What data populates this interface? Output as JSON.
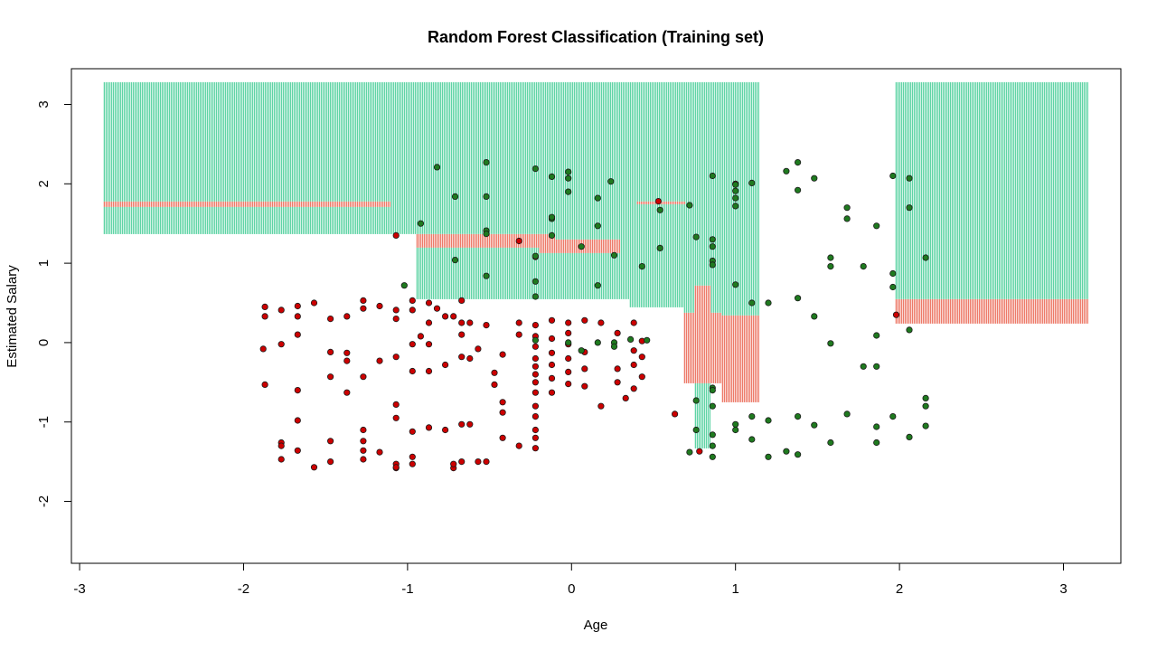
{
  "chart_data": {
    "type": "scatter",
    "title": "Random Forest Classification (Training set)",
    "xlabel": "Age",
    "ylabel": "Estimated Salary",
    "xlim": [
      -3.05,
      3.35
    ],
    "ylim": [
      -2.78,
      3.45
    ],
    "xticks": [
      "-3",
      "-2",
      "-1",
      "0",
      "1",
      "2",
      "3"
    ],
    "yticks": [
      "-2",
      "-1",
      "0",
      "1",
      "2",
      "3"
    ],
    "grid": false,
    "grid_range": {
      "x": [
        -2.85,
        3.15
      ],
      "y": [
        -2.6,
        3.28
      ]
    },
    "region_colors": {
      "class_0": "#fa8072",
      "class_1": "#3cb371",
      "stripe_green": "#32c88c",
      "stripe_red": "#e8553f"
    },
    "point_colors": {
      "class_0": "#cc0000",
      "class_1": "#1f7a1f"
    },
    "series": [
      {
        "class": "0",
        "points": [
          [
            -1.87,
            0.45
          ],
          [
            -1.87,
            0.33
          ],
          [
            -1.77,
            0.41
          ],
          [
            -1.67,
            0.46
          ],
          [
            -1.67,
            0.33
          ],
          [
            -1.57,
            0.5
          ],
          [
            -1.47,
            0.3
          ],
          [
            -1.37,
            0.33
          ],
          [
            -1.27,
            0.53
          ],
          [
            -1.27,
            0.43
          ],
          [
            -1.17,
            0.46
          ],
          [
            -1.07,
            0.41
          ],
          [
            -1.07,
            0.3
          ],
          [
            -0.97,
            0.53
          ],
          [
            -0.97,
            0.41
          ],
          [
            -0.87,
            0.5
          ],
          [
            -0.87,
            0.25
          ],
          [
            -0.77,
            0.33
          ],
          [
            -0.67,
            0.53
          ],
          [
            -0.67,
            0.25
          ],
          [
            -1.88,
            -0.08
          ],
          [
            -1.77,
            -0.02
          ],
          [
            -1.67,
            0.1
          ],
          [
            -1.47,
            -0.12
          ],
          [
            -1.87,
            -0.53
          ],
          [
            -1.37,
            -0.23
          ],
          [
            -1.37,
            -0.13
          ],
          [
            -1.27,
            -0.43
          ],
          [
            -1.47,
            -0.43
          ],
          [
            -1.37,
            -0.63
          ],
          [
            -1.17,
            -0.23
          ],
          [
            -1.07,
            -0.18
          ],
          [
            -0.97,
            -0.02
          ],
          [
            -0.97,
            -0.36
          ],
          [
            -0.87,
            -0.36
          ],
          [
            -0.87,
            -0.02
          ],
          [
            -0.77,
            -0.28
          ],
          [
            -0.67,
            -0.18
          ],
          [
            -0.67,
            0.1
          ],
          [
            -0.57,
            -0.08
          ],
          [
            -1.67,
            -0.6
          ],
          [
            -1.67,
            -0.98
          ],
          [
            -1.77,
            -1.26
          ],
          [
            -1.77,
            -1.3
          ],
          [
            -1.77,
            -1.47
          ],
          [
            -1.57,
            -1.57
          ],
          [
            -1.67,
            -1.36
          ],
          [
            -1.47,
            -1.24
          ],
          [
            -1.47,
            -1.5
          ],
          [
            -1.27,
            -1.1
          ],
          [
            -1.27,
            -1.24
          ],
          [
            -1.27,
            -1.36
          ],
          [
            -1.27,
            -1.47
          ],
          [
            -1.17,
            -1.38
          ],
          [
            -1.07,
            -1.53
          ],
          [
            -1.07,
            -1.58
          ],
          [
            -0.97,
            -1.44
          ],
          [
            -0.97,
            -1.53
          ],
          [
            -1.07,
            -0.78
          ],
          [
            -1.07,
            -0.95
          ],
          [
            -0.97,
            -1.12
          ],
          [
            -0.87,
            -1.07
          ],
          [
            -0.77,
            -1.1
          ],
          [
            -0.67,
            -1.03
          ],
          [
            -0.67,
            -1.5
          ],
          [
            -0.57,
            -1.5
          ],
          [
            -0.47,
            -0.53
          ],
          [
            -0.47,
            -0.38
          ],
          [
            -0.42,
            -0.75
          ],
          [
            -0.42,
            -1.2
          ],
          [
            -0.32,
            -1.3
          ],
          [
            -0.22,
            -1.33
          ],
          [
            -0.22,
            -1.2
          ],
          [
            -0.22,
            -1.1
          ],
          [
            -0.22,
            -0.93
          ],
          [
            -0.22,
            -0.8
          ],
          [
            -0.22,
            -0.63
          ],
          [
            -0.22,
            -0.5
          ],
          [
            -0.22,
            -0.4
          ],
          [
            -0.22,
            -0.3
          ],
          [
            -0.22,
            -0.2
          ],
          [
            -0.22,
            -0.05
          ],
          [
            -0.22,
            0.08
          ],
          [
            -0.22,
            0.22
          ],
          [
            -0.12,
            0.28
          ],
          [
            -0.12,
            0.05
          ],
          [
            -0.12,
            -0.13
          ],
          [
            -0.12,
            -0.28
          ],
          [
            -0.12,
            -0.45
          ],
          [
            -0.12,
            -0.63
          ],
          [
            -0.02,
            0.25
          ],
          [
            -0.02,
            0.12
          ],
          [
            -0.02,
            -0.02
          ],
          [
            -0.02,
            -0.2
          ],
          [
            -0.02,
            -0.37
          ],
          [
            -0.02,
            -0.52
          ],
          [
            0.08,
            0.28
          ],
          [
            0.08,
            -0.12
          ],
          [
            0.08,
            -0.33
          ],
          [
            0.08,
            -0.55
          ],
          [
            0.18,
            0.25
          ],
          [
            0.18,
            -0.8
          ],
          [
            0.28,
            -0.33
          ],
          [
            0.28,
            -0.5
          ],
          [
            0.28,
            0.12
          ],
          [
            0.33,
            -0.7
          ],
          [
            0.38,
            0.25
          ],
          [
            0.38,
            -0.1
          ],
          [
            0.38,
            -0.28
          ],
          [
            0.38,
            -0.58
          ],
          [
            0.43,
            0.02
          ],
          [
            0.43,
            -0.18
          ],
          [
            0.43,
            -0.43
          ],
          [
            -0.72,
            0.33
          ],
          [
            -0.62,
            -0.2
          ],
          [
            -0.52,
            0.22
          ],
          [
            -0.32,
            0.25
          ],
          [
            -0.32,
            0.1
          ],
          [
            -0.42,
            -0.15
          ],
          [
            -0.62,
            0.25
          ],
          [
            0.63,
            -0.9
          ],
          [
            0.78,
            -1.37
          ],
          [
            1.0,
            2.0
          ],
          [
            0.53,
            1.78
          ],
          [
            -1.07,
            1.35
          ],
          [
            -0.22,
            1.08
          ],
          [
            -0.32,
            1.28
          ],
          [
            1.98,
            0.35
          ],
          [
            -0.72,
            -1.58
          ],
          [
            -0.72,
            -1.53
          ],
          [
            -0.52,
            -1.5
          ],
          [
            -0.42,
            -0.88
          ],
          [
            -0.62,
            -1.03
          ],
          [
            -1.07,
            -1.57
          ],
          [
            -0.92,
            0.08
          ],
          [
            -0.82,
            0.43
          ]
        ]
      },
      {
        "class": "1",
        "points": [
          [
            -0.82,
            2.21
          ],
          [
            -0.52,
            2.27
          ],
          [
            -0.22,
            2.19
          ],
          [
            -0.12,
            2.09
          ],
          [
            -0.02,
            2.15
          ],
          [
            -0.02,
            2.07
          ],
          [
            -0.02,
            1.9
          ],
          [
            0.24,
            2.03
          ],
          [
            -0.71,
            1.84
          ],
          [
            -0.52,
            1.84
          ],
          [
            0.16,
            1.82
          ],
          [
            -0.12,
            1.56
          ],
          [
            -0.12,
            1.58
          ],
          [
            -0.92,
            1.5
          ],
          [
            -0.52,
            1.41
          ],
          [
            -0.52,
            1.37
          ],
          [
            -0.12,
            1.35
          ],
          [
            0.16,
            1.47
          ],
          [
            0.06,
            1.21
          ],
          [
            -0.22,
            1.09
          ],
          [
            -0.71,
            1.04
          ],
          [
            -1.02,
            0.72
          ],
          [
            -0.52,
            0.84
          ],
          [
            -0.22,
            0.77
          ],
          [
            -0.22,
            0.58
          ],
          [
            0.16,
            0.72
          ],
          [
            0.26,
            1.1
          ],
          [
            0.43,
            0.96
          ],
          [
            0.54,
            1.67
          ],
          [
            0.54,
            1.19
          ],
          [
            0.72,
            1.73
          ],
          [
            0.86,
            2.1
          ],
          [
            1.0,
            1.99
          ],
          [
            1.0,
            1.91
          ],
          [
            1.0,
            1.82
          ],
          [
            1.0,
            1.72
          ],
          [
            1.1,
            2.01
          ],
          [
            0.86,
            1.3
          ],
          [
            0.76,
            1.33
          ],
          [
            0.86,
            1.21
          ],
          [
            0.86,
            1.03
          ],
          [
            0.86,
            0.98
          ],
          [
            1.0,
            0.73
          ],
          [
            1.1,
            0.5
          ],
          [
            1.2,
            0.5
          ],
          [
            1.31,
            2.16
          ],
          [
            1.38,
            2.27
          ],
          [
            1.38,
            1.92
          ],
          [
            1.48,
            2.07
          ],
          [
            1.58,
            1.07
          ],
          [
            1.58,
            0.96
          ],
          [
            1.68,
            1.7
          ],
          [
            1.68,
            1.56
          ],
          [
            1.78,
            0.96
          ],
          [
            1.86,
            1.47
          ],
          [
            1.96,
            2.1
          ],
          [
            2.06,
            2.07
          ],
          [
            2.06,
            1.7
          ],
          [
            2.16,
            1.07
          ],
          [
            1.96,
            0.87
          ],
          [
            1.96,
            0.7
          ],
          [
            1.38,
            0.56
          ],
          [
            1.48,
            0.33
          ],
          [
            1.58,
            -0.01
          ],
          [
            1.86,
            0.09
          ],
          [
            1.78,
            -0.3
          ],
          [
            1.86,
            -0.3
          ],
          [
            2.06,
            0.16
          ],
          [
            1.68,
            -0.9
          ],
          [
            1.86,
            -1.06
          ],
          [
            1.86,
            -1.26
          ],
          [
            1.96,
            -0.93
          ],
          [
            2.06,
            -1.19
          ],
          [
            2.16,
            -0.7
          ],
          [
            2.16,
            -0.8
          ],
          [
            2.16,
            -1.05
          ],
          [
            1.58,
            -1.26
          ],
          [
            1.48,
            -1.04
          ],
          [
            1.38,
            -0.93
          ],
          [
            1.38,
            -1.41
          ],
          [
            1.31,
            -1.37
          ],
          [
            1.2,
            -0.98
          ],
          [
            1.2,
            -1.44
          ],
          [
            1.1,
            -0.93
          ],
          [
            1.1,
            -1.22
          ],
          [
            1.0,
            -1.03
          ],
          [
            1.0,
            -1.1
          ],
          [
            0.86,
            -0.8
          ],
          [
            0.86,
            -0.57
          ],
          [
            0.86,
            -1.16
          ],
          [
            0.86,
            -1.3
          ],
          [
            0.86,
            -1.44
          ],
          [
            0.76,
            -0.73
          ],
          [
            0.76,
            -1.1
          ],
          [
            0.72,
            -1.38
          ],
          [
            0.86,
            -0.6
          ],
          [
            0.26,
            0.0
          ],
          [
            -0.02,
            0.0
          ],
          [
            0.16,
            0.0
          ],
          [
            0.36,
            0.04
          ],
          [
            0.46,
            0.03
          ],
          [
            0.06,
            -0.1
          ],
          [
            0.26,
            -0.05
          ],
          [
            -0.22,
            0.03
          ]
        ]
      }
    ]
  }
}
